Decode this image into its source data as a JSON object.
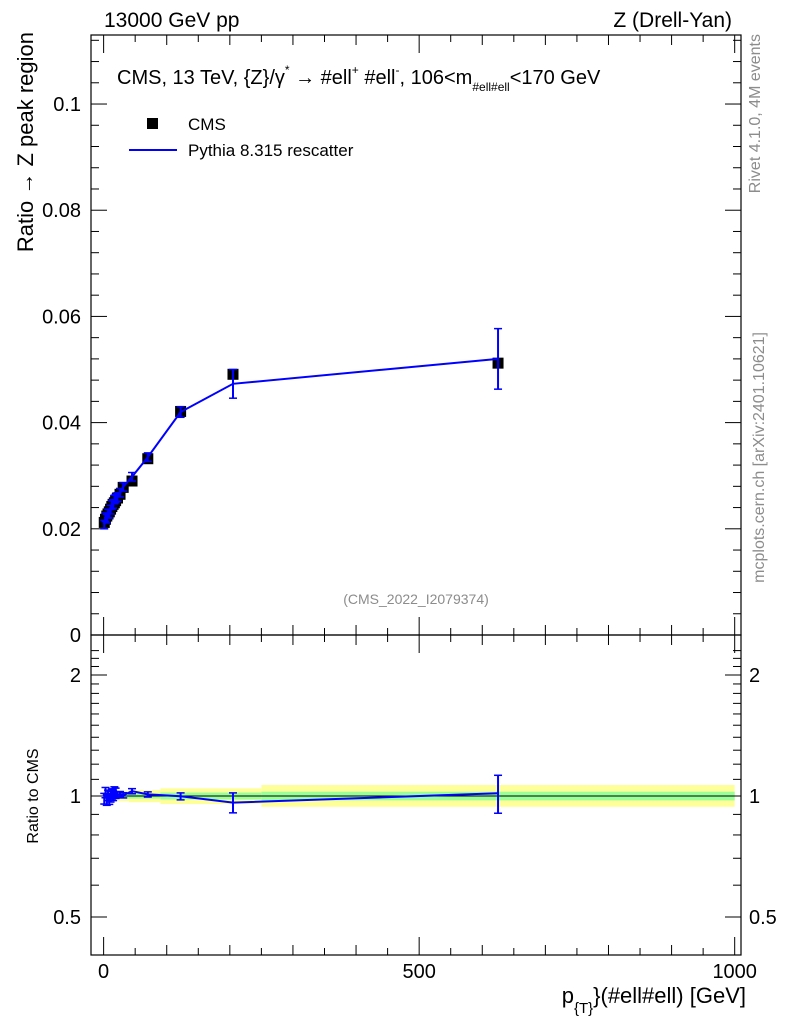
{
  "header": {
    "left": "13000 GeV pp",
    "right": "Z (Drell-Yan)"
  },
  "side_labels": {
    "rivet": "Rivet 4.1.0,  4M events",
    "mcplots": "mcplots.cern.ch [arXiv:2401.10621]"
  },
  "chart_data": [
    {
      "type": "scatter",
      "panel": "main",
      "title": "CMS, 13 TeV, {Z}/γ*  →  #ell+ #ell-,  106<m#ell#ell<170 GeV",
      "title_parts": {
        "pre": "CMS, 13 TeV, {Z}/γ",
        "sup1": "*",
        "mid": " →  #ell",
        "sup2": "+",
        "mid2": " #ell",
        "sup3": "-",
        "mid3": ",  106<m",
        "sub": "#ell#ell",
        "post": "<170 GeV"
      },
      "ylabel": "Ratio → Z peak region",
      "xlabel": "p{T}(#ell#ell) [GeV]",
      "xlabel_parts": {
        "p": "p",
        "sub": "{T}",
        "rest": "}(#ell#ell) [GeV]"
      },
      "watermark": "(CMS_2022_I2079374)",
      "xlim": [
        -20,
        1010
      ],
      "ylim": [
        0,
        0.113
      ],
      "y_ticks": [
        0,
        0.02,
        0.04,
        0.06,
        0.08,
        0.1
      ],
      "y_tick_labels": [
        "0",
        "0.02",
        "0.04",
        "0.06",
        "0.08",
        "0.1"
      ],
      "legend_position": "top-left",
      "series": [
        {
          "name": "CMS",
          "style": "markers",
          "color": "#000000",
          "x": [
            1,
            3,
            5,
            7,
            9,
            11,
            13,
            15,
            17,
            19,
            22,
            26,
            31,
            45,
            70,
            122,
            205,
            625
          ],
          "y": [
            0.0212,
            0.0218,
            0.0224,
            0.0228,
            0.0232,
            0.0237,
            0.0242,
            0.0246,
            0.0249,
            0.0253,
            0.0258,
            0.0265,
            0.0278,
            0.029,
            0.0332,
            0.0421,
            0.0491,
            0.0512
          ],
          "yerr": [
            0.0004,
            0.0004,
            0.0004,
            0.0004,
            0.0004,
            0.0004,
            0.0004,
            0.0004,
            0.0004,
            0.0004,
            0.0004,
            0.0004,
            0.0004,
            0.0005,
            0.0005,
            0.0007,
            0.0008,
            0.0012
          ]
        },
        {
          "name": "Pythia 8.315 rescatter",
          "style": "line",
          "color": "#0000ff",
          "x": [
            1,
            3,
            5,
            7,
            9,
            11,
            13,
            15,
            17,
            19,
            22,
            26,
            31,
            45,
            70,
            122,
            205,
            625
          ],
          "y": [
            0.0208,
            0.0222,
            0.0219,
            0.0229,
            0.0228,
            0.0236,
            0.0245,
            0.0247,
            0.0255,
            0.0257,
            0.026,
            0.0268,
            0.0279,
            0.0298,
            0.0335,
            0.042,
            0.0473,
            0.052
          ],
          "yerr": [
            0.0008,
            0.0008,
            0.0008,
            0.0008,
            0.0008,
            0.0008,
            0.0008,
            0.0008,
            0.0008,
            0.0008,
            0.0008,
            0.0008,
            0.0008,
            0.0008,
            0.0008,
            0.001,
            0.0027,
            0.0057
          ]
        }
      ]
    },
    {
      "type": "line",
      "panel": "ratio",
      "ylabel": "Ratio to CMS",
      "ylim": [
        0.4,
        2.4
      ],
      "log_y": true,
      "y_ticks": [
        0.5,
        1,
        2
      ],
      "y_tick_labels": [
        "0.5",
        "1",
        "2"
      ],
      "x_ticks": [
        0,
        500,
        1000
      ],
      "x_tick_labels": [
        "0",
        "500",
        "1000"
      ],
      "bands": {
        "stat_color": "#99ff99",
        "total_color": "#ffff99",
        "segments": [
          {
            "x0": 0,
            "x1": 40,
            "stat": [
              0.985,
              1.015
            ],
            "total": [
              0.97,
              1.03
            ]
          },
          {
            "x0": 40,
            "x1": 90,
            "stat": [
              0.985,
              1.015
            ],
            "total": [
              0.965,
              1.035
            ]
          },
          {
            "x0": 90,
            "x1": 250,
            "stat": [
              0.98,
              1.02
            ],
            "total": [
              0.955,
              1.045
            ]
          },
          {
            "x0": 250,
            "x1": 1000,
            "stat": [
              0.975,
              1.025
            ],
            "total": [
              0.94,
              1.065
            ]
          }
        ]
      },
      "series": [
        {
          "name": "Pythia 8.315 rescatter",
          "color": "#0000ff",
          "x": [
            1,
            3,
            5,
            7,
            9,
            11,
            13,
            15,
            17,
            19,
            22,
            26,
            31,
            45,
            70,
            122,
            205,
            625
          ],
          "y": [
            0.985,
            1.02,
            0.978,
            1.004,
            0.983,
            0.996,
            1.012,
            1.004,
            1.024,
            1.016,
            1.008,
            1.011,
            1.004,
            1.028,
            1.009,
            0.998,
            0.963,
            1.016
          ],
          "yerr": [
            0.03,
            0.03,
            0.03,
            0.03,
            0.03,
            0.03,
            0.03,
            0.03,
            0.03,
            0.03,
            0.015,
            0.015,
            0.015,
            0.015,
            0.015,
            0.02,
            0.055,
            0.11
          ]
        }
      ]
    }
  ]
}
